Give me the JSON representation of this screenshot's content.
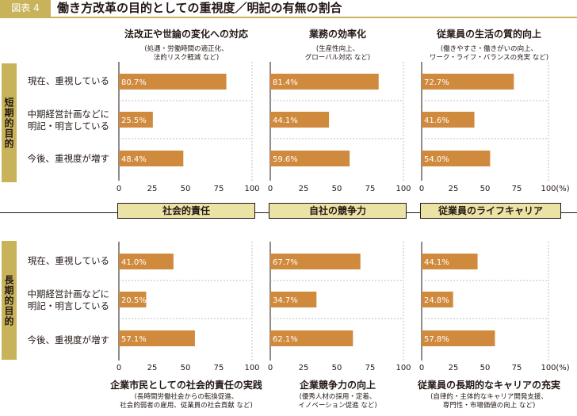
{
  "header": {
    "figure_label": "図表 4",
    "title": "働き方改革の目的としての重視度／明記の有無の割合"
  },
  "groups": {
    "short": "短期的目的",
    "long": "長期的目的"
  },
  "row_labels": [
    "現在、重視している",
    "中期経営計画などに|明記・明言している",
    "今後、重視度が増す"
  ],
  "middle_labels": [
    "社会的責任",
    "自社の競争力",
    "従業員のライフキャリア"
  ],
  "top_columns": [
    {
      "title": "法改正や世論の変化への対応",
      "subtitle": [
        "(処遇・労働時間の適正化、",
        "法的リスク軽減 など)"
      ]
    },
    {
      "title": "業務の効率化",
      "subtitle": [
        "(生産性向上、",
        "グローバル対応 など)"
      ]
    },
    {
      "title": "従業員の生活の質的向上",
      "subtitle": [
        "(働きやすさ・働きがいの向上、",
        "ワーク・ライフ・バランスの充実 など)"
      ]
    }
  ],
  "bottom_columns": [
    {
      "title": "企業市民としての社会的責任の実践",
      "subtitle": [
        "(長時間労働社会からの転換促進、",
        "社会的弱者の雇用、従業員の社会貢献 など)"
      ]
    },
    {
      "title": "企業競争力の向上",
      "subtitle": [
        "(優秀人材の採用・定着、",
        "イノベーション促進 など)"
      ]
    },
    {
      "title": "従業員の長期的なキャリアの充実",
      "subtitle": [
        "(自律的・主体的なキャリア開発支援、",
        "専門性・市場価値の向上 など)"
      ]
    }
  ],
  "unit_label": "(%)",
  "colors": {
    "bar": "#d08a3e",
    "olive": "#c8b35a",
    "band": "#ebe3a6",
    "frame": "#231815",
    "grid": "#bfbfbf"
  },
  "chart_data": [
    {
      "type": "bar",
      "orientation": "horizontal",
      "group": "短期的目的",
      "title": "法改正や世論の変化への対応",
      "categories": [
        "現在、重視している",
        "中期経営計画などに明記・明言している",
        "今後、重視度が増す"
      ],
      "values": [
        80.7,
        25.5,
        48.4
      ],
      "labels": [
        "80.7%",
        "25.5%",
        "48.4%"
      ],
      "xlim": [
        0,
        100
      ],
      "xticks": [
        0,
        25,
        50,
        75,
        100
      ]
    },
    {
      "type": "bar",
      "orientation": "horizontal",
      "group": "短期的目的",
      "title": "業務の効率化",
      "categories": [
        "現在、重視している",
        "中期経営計画などに明記・明言している",
        "今後、重視度が増す"
      ],
      "values": [
        81.4,
        44.1,
        59.6
      ],
      "labels": [
        "81.4%",
        "44.1%",
        "59.6%"
      ],
      "xlim": [
        0,
        100
      ],
      "xticks": [
        0,
        25,
        50,
        75,
        100
      ]
    },
    {
      "type": "bar",
      "orientation": "horizontal",
      "group": "短期的目的",
      "title": "従業員の生活の質的向上",
      "categories": [
        "現在、重視している",
        "中期経営計画などに明記・明言している",
        "今後、重視度が増す"
      ],
      "values": [
        72.7,
        41.6,
        54.0
      ],
      "labels": [
        "72.7%",
        "41.6%",
        "54.0%"
      ],
      "xlim": [
        0,
        100
      ],
      "xticks": [
        0,
        25,
        50,
        75,
        100
      ]
    },
    {
      "type": "bar",
      "orientation": "horizontal",
      "group": "長期的目的",
      "title": "企業市民としての社会的責任の実践",
      "categories": [
        "現在、重視している",
        "中期経営計画などに明記・明言している",
        "今後、重視度が増す"
      ],
      "values": [
        41.0,
        20.5,
        57.1
      ],
      "labels": [
        "41.0%",
        "20.5%",
        "57.1%"
      ],
      "xlim": [
        0,
        100
      ],
      "xticks": [
        0,
        25,
        50,
        75,
        100
      ]
    },
    {
      "type": "bar",
      "orientation": "horizontal",
      "group": "長期的目的",
      "title": "企業競争力の向上",
      "categories": [
        "現在、重視している",
        "中期経営計画などに明記・明言している",
        "今後、重視度が増す"
      ],
      "values": [
        67.7,
        34.7,
        62.1
      ],
      "labels": [
        "67.7%",
        "34.7%",
        "62.1%"
      ],
      "xlim": [
        0,
        100
      ],
      "xticks": [
        0,
        25,
        50,
        75,
        100
      ]
    },
    {
      "type": "bar",
      "orientation": "horizontal",
      "group": "長期的目的",
      "title": "従業員の長期的なキャリアの充実",
      "categories": [
        "現在、重視している",
        "中期経営計画などに明記・明言している",
        "今後、重視度が増す"
      ],
      "values": [
        44.1,
        24.8,
        57.8
      ],
      "labels": [
        "44.1%",
        "24.8%",
        "57.8%"
      ],
      "xlim": [
        0,
        100
      ],
      "xticks": [
        0,
        25,
        50,
        75,
        100
      ]
    }
  ]
}
